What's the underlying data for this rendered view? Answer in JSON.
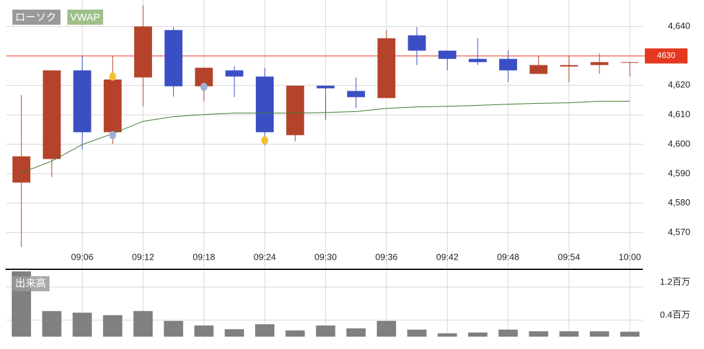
{
  "chart_data": [
    {
      "type": "candlestick",
      "categories": [
        null,
        null,
        "09:06",
        null,
        "09:12",
        null,
        "09:18",
        null,
        "09:24",
        null,
        "09:30",
        null,
        "09:36",
        null,
        "09:42",
        null,
        "09:48",
        null,
        "09:54",
        null,
        "10:00"
      ],
      "candles": {
        "name": "ローソク",
        "up_color": "#b5432b",
        "down_color": "#3a4fc4",
        "open": [
          4587.0,
          4595.0,
          4625.1,
          4604.1,
          4622.7,
          4638.8,
          4619.7,
          4625.1,
          4623.0,
          4603.1,
          4619.9,
          4618.1,
          4615.7,
          4637.0,
          4631.8,
          4629.0,
          4629.0,
          4623.9,
          4626.4,
          4626.9,
          4627.7
        ],
        "high": [
          4616.7,
          4625.1,
          4630.0,
          4630.0,
          4647.2,
          4639.8,
          4626.0,
          4626.5,
          4626.0,
          4619.9,
          4619.9,
          4622.7,
          4638.8,
          4639.8,
          4631.8,
          4636.0,
          4631.8,
          4630.0,
          4630.0,
          4630.9,
          4627.9
        ],
        "low": [
          4565.1,
          4588.9,
          4598.2,
          4600.1,
          4612.9,
          4616.2,
          4614.6,
          4616.0,
          4599.6,
          4601.0,
          4608.3,
          4612.2,
          4615.7,
          4626.9,
          4625.1,
          4626.9,
          4621.1,
          4623.9,
          4621.1,
          4623.9,
          4623.0
        ],
        "close": [
          4595.9,
          4625.1,
          4604.1,
          4622.0,
          4640.0,
          4619.7,
          4626.0,
          4623.0,
          4604.1,
          4619.9,
          4619.0,
          4616.0,
          4636.0,
          4631.8,
          4629.0,
          4627.9,
          4625.1,
          4626.9,
          4626.9,
          4627.9,
          4627.9
        ]
      },
      "vwap": {
        "name": "VWAP",
        "color": "#3a7a2a",
        "values": [
          4590.3,
          4594.3,
          4599.9,
          4603.6,
          4607.8,
          4609.4,
          4610.1,
          4610.6,
          4610.6,
          4610.6,
          4610.8,
          4611.1,
          4612.2,
          4612.7,
          4612.9,
          4613.2,
          4613.6,
          4613.9,
          4614.1,
          4614.6,
          4614.6
        ]
      },
      "signals": [
        {
          "index": 3,
          "value": 4623.0,
          "color": "#f2c12e"
        },
        {
          "index": 3,
          "value": 4603.1,
          "color": "#9fb0d6"
        },
        {
          "index": 6,
          "value": 4619.5,
          "color": "#9fb0d6"
        },
        {
          "index": 8,
          "value": 4601.3,
          "color": "#f2c12e"
        }
      ],
      "last_price": 4630,
      "last_price_color": "#e5381e",
      "ylim": [
        4558,
        4649
      ],
      "yticks": [
        {
          "value": 4570,
          "label": "4,570"
        },
        {
          "value": 4580,
          "label": "4,580"
        },
        {
          "value": 4590,
          "label": "4,590"
        },
        {
          "value": 4600,
          "label": "4,600"
        },
        {
          "value": 4610,
          "label": "4,610"
        },
        {
          "value": 4620,
          "label": "4,620"
        },
        {
          "value": 4640,
          "label": "4,640"
        }
      ],
      "grid": true
    },
    {
      "type": "bar",
      "title": "出来高",
      "color": "#808080",
      "values": [
        1.58,
        0.62,
        0.58,
        0.52,
        0.62,
        0.38,
        0.27,
        0.18,
        0.3,
        0.15,
        0.27,
        0.2,
        0.38,
        0.17,
        0.08,
        0.1,
        0.17,
        0.13,
        0.13,
        0.13,
        0.12
      ],
      "ylim": [
        0,
        1.58
      ],
      "yticks": [
        {
          "value": 0.4,
          "label": "0.4百万"
        },
        {
          "value": 1.2,
          "label": "1.2百万"
        }
      ],
      "grid": true
    }
  ]
}
